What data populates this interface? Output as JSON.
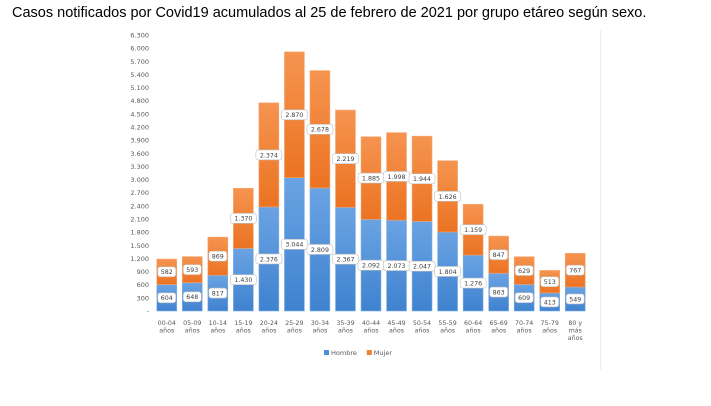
{
  "title": "Casos notificados por Covid19 acumulados al 25 de febrero de 2021 por grupo etáreo según sexo.",
  "chart_data": {
    "type": "bar",
    "stacked": true,
    "title": "",
    "xlabel": "",
    "ylabel": "",
    "ylim": [
      0,
      6300
    ],
    "yticks": [
      "-",
      "300",
      "600",
      "900",
      "1.200",
      "1.500",
      "1.800",
      "2.100",
      "2.400",
      "2.700",
      "3.000",
      "3.300",
      "3.600",
      "3.900",
      "4.200",
      "4.500",
      "4.800",
      "5.100",
      "5.400",
      "5.700",
      "6.000",
      "6.300"
    ],
    "categories": [
      [
        "00-04",
        "años"
      ],
      [
        "05-09",
        "años"
      ],
      [
        "10-14",
        "años"
      ],
      [
        "15-19",
        "años"
      ],
      [
        "20-24",
        "años"
      ],
      [
        "25-29",
        "años"
      ],
      [
        "30-34",
        "años"
      ],
      [
        "35-39",
        "años"
      ],
      [
        "40-44",
        "años"
      ],
      [
        "45-49",
        "años"
      ],
      [
        "50-54",
        "años"
      ],
      [
        "55-59",
        "años"
      ],
      [
        "60-64",
        "años"
      ],
      [
        "65-69",
        "años"
      ],
      [
        "70-74",
        "años"
      ],
      [
        "75-79",
        "años"
      ],
      [
        "80 y",
        "más",
        "años"
      ]
    ],
    "series": [
      {
        "name": "Hombre",
        "color": "#4e90d8",
        "values": [
          604,
          648,
          817,
          1430,
          2376,
          3044,
          2809,
          2367,
          2092,
          2073,
          2047,
          1804,
          1276,
          863,
          609,
          413,
          549
        ],
        "labels": [
          "604",
          "648",
          "817",
          "1.430",
          "2.376",
          "3.044",
          "2.809",
          "2.367",
          "2.092",
          "2.073",
          "2.047",
          "1.804",
          "1.276",
          "863",
          "609",
          "413",
          "549"
        ]
      },
      {
        "name": "Mujer",
        "color": "#f0812f",
        "values": [
          582,
          593,
          869,
          1370,
          2374,
          2870,
          2678,
          2219,
          1885,
          1998,
          1944,
          1626,
          1159,
          847,
          629,
          513,
          767
        ],
        "labels": [
          "582",
          "593",
          "869",
          "1.370",
          "2.374",
          "2.870",
          "2.678",
          "2.219",
          "1.885",
          "1.998",
          "1.944",
          "1.626",
          "1.159",
          "847",
          "629",
          "513",
          "767"
        ]
      }
    ],
    "legend": "bottom",
    "grid": false
  }
}
